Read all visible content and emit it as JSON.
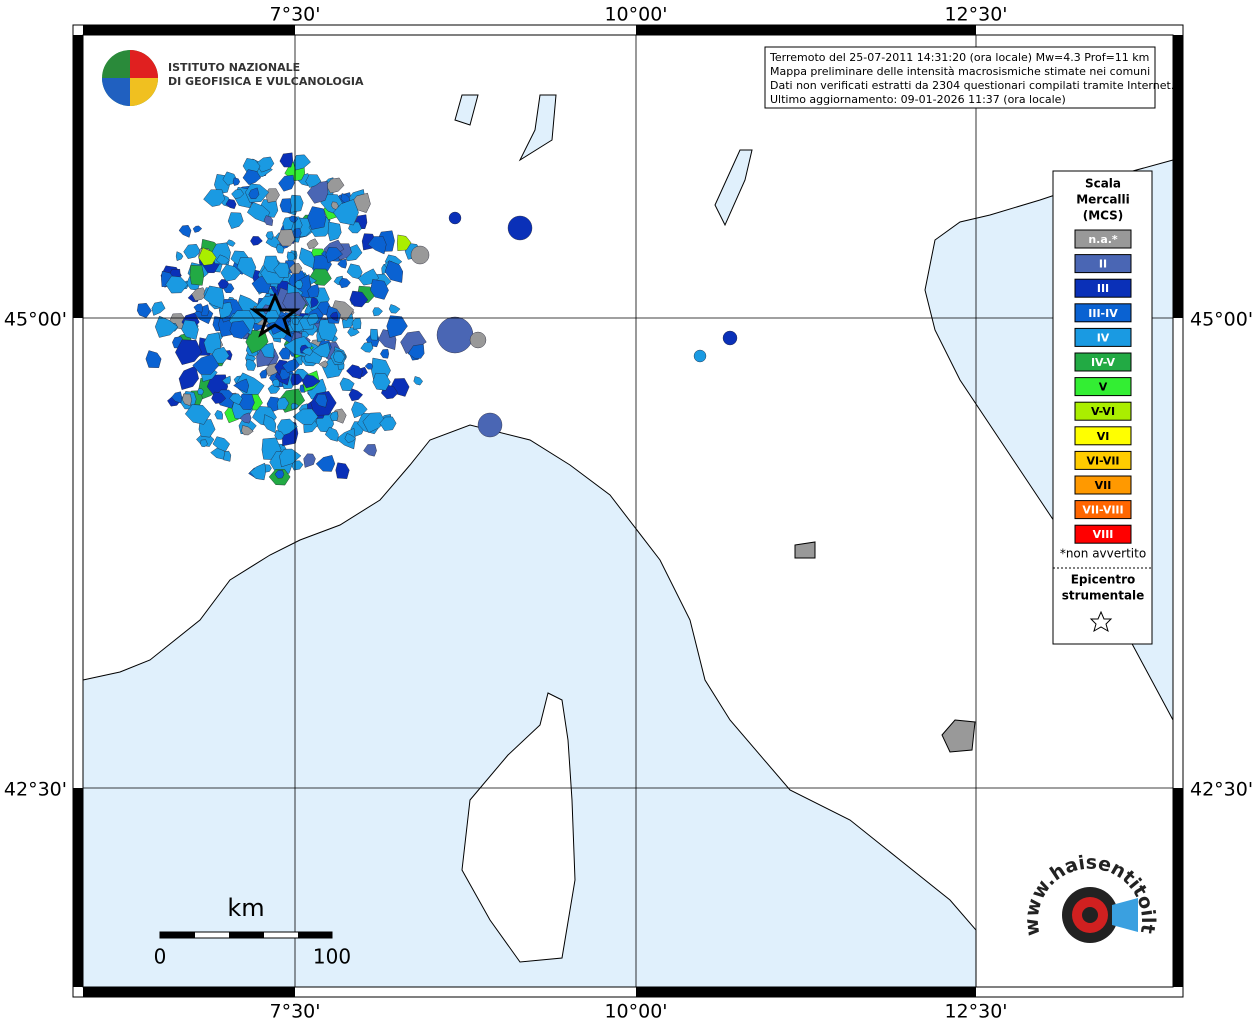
{
  "map": {
    "axis_labels": {
      "top": [
        "7°30'",
        "10°00'",
        "12°30'"
      ],
      "bottom": [
        "7°30'",
        "10°00'",
        "12°30'"
      ],
      "left": [
        "45°00'",
        "42°30'"
      ],
      "right": [
        "45°00'",
        "42°30'"
      ]
    },
    "info": [
      "Terremoto del 25-07-2011 14:31:20 (ora locale) Mw=4.3 Prof=11 km",
      "Mappa preliminare delle intensità macrosismiche stimate nei comuni",
      "Dati non verificati estratti da 2304 questionari compilati tramite Internet.",
      "Ultimo aggiornamento: 09-01-2026 11:37 (ora locale)"
    ],
    "legend": {
      "title": [
        "Scala",
        "Mercalli",
        "(MCS)"
      ],
      "items": [
        {
          "label": "n.a.*",
          "color": "#999999"
        },
        {
          "label": "II",
          "color": "#4a66b4"
        },
        {
          "label": "III",
          "color": "#0a30b8"
        },
        {
          "label": "III-IV",
          "color": "#0a62d2"
        },
        {
          "label": "IV",
          "color": "#1a9ae2"
        },
        {
          "label": "IV-V",
          "color": "#22aa44"
        },
        {
          "label": "V",
          "color": "#33ee33"
        },
        {
          "label": "V-VI",
          "color": "#aaee00"
        },
        {
          "label": "VI",
          "color": "#ffff00"
        },
        {
          "label": "VI-VII",
          "color": "#ffcc00"
        },
        {
          "label": "VII",
          "color": "#ff9900"
        },
        {
          "label": "VII-VIII",
          "color": "#ff6600"
        },
        {
          "label": "VIII",
          "color": "#ff0000"
        }
      ],
      "note": "*non avvertito",
      "epicentre": [
        "Epicentro",
        "strumentale"
      ]
    },
    "scale_bar": {
      "unit": "km",
      "labels": [
        "0",
        "100"
      ]
    },
    "logos": {
      "ingv": [
        "ISTITUTO NAZIONALE",
        "DI GEOFISICA E VULCANOLOGIA"
      ],
      "hsit": "www.haisentitoilterremoto.it"
    }
  }
}
